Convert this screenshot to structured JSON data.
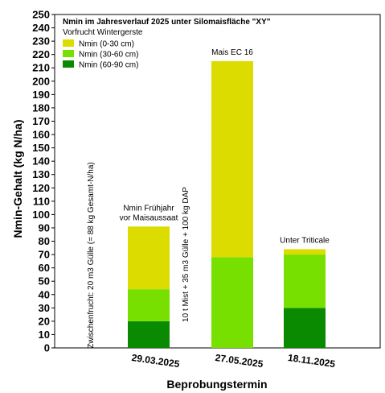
{
  "chart_data": {
    "type": "bar",
    "stacked": true,
    "title": "Nmin im Jahresverlauf 2025 unter Silomaisfläche \"XY\"",
    "legend_subtitle": "Vorfrucht Wintergerste",
    "xlabel": "Beprobungstermin",
    "ylabel": "Nmin-Gehalt (kg N/ha)",
    "ylim": [
      0,
      250
    ],
    "ytick_step": 10,
    "grid": false,
    "legend_position": "top-left",
    "categories": [
      "29.03.2025",
      "27.05.2025",
      "18.11.2025"
    ],
    "series": [
      {
        "name": "Nmin (60-90 cm)",
        "color": "#0a8a00",
        "values": [
          20,
          0,
          30
        ]
      },
      {
        "name": "Nmin (30-60 cm)",
        "color": "#78e000",
        "values": [
          24,
          68,
          40
        ]
      },
      {
        "name": "Nmin (0-30 cm)",
        "color": "#dcdc00",
        "values": [
          47,
          147,
          4
        ]
      }
    ],
    "legend_order": [
      2,
      1,
      0
    ],
    "bar_labels": [
      "Nmin Frühjahr\nvor Maisaussaat",
      "Mais EC 16",
      "Unter Triticale"
    ],
    "annotations": [
      {
        "text": "Zwischenfrucht: 20 m3 Gülle (= 88 kg Gesamt-N/ha)",
        "before_category": 0
      },
      {
        "text": "10 t Mist + 35 m3 Gülle + 100 kg DAP",
        "before_category": 1
      }
    ]
  }
}
